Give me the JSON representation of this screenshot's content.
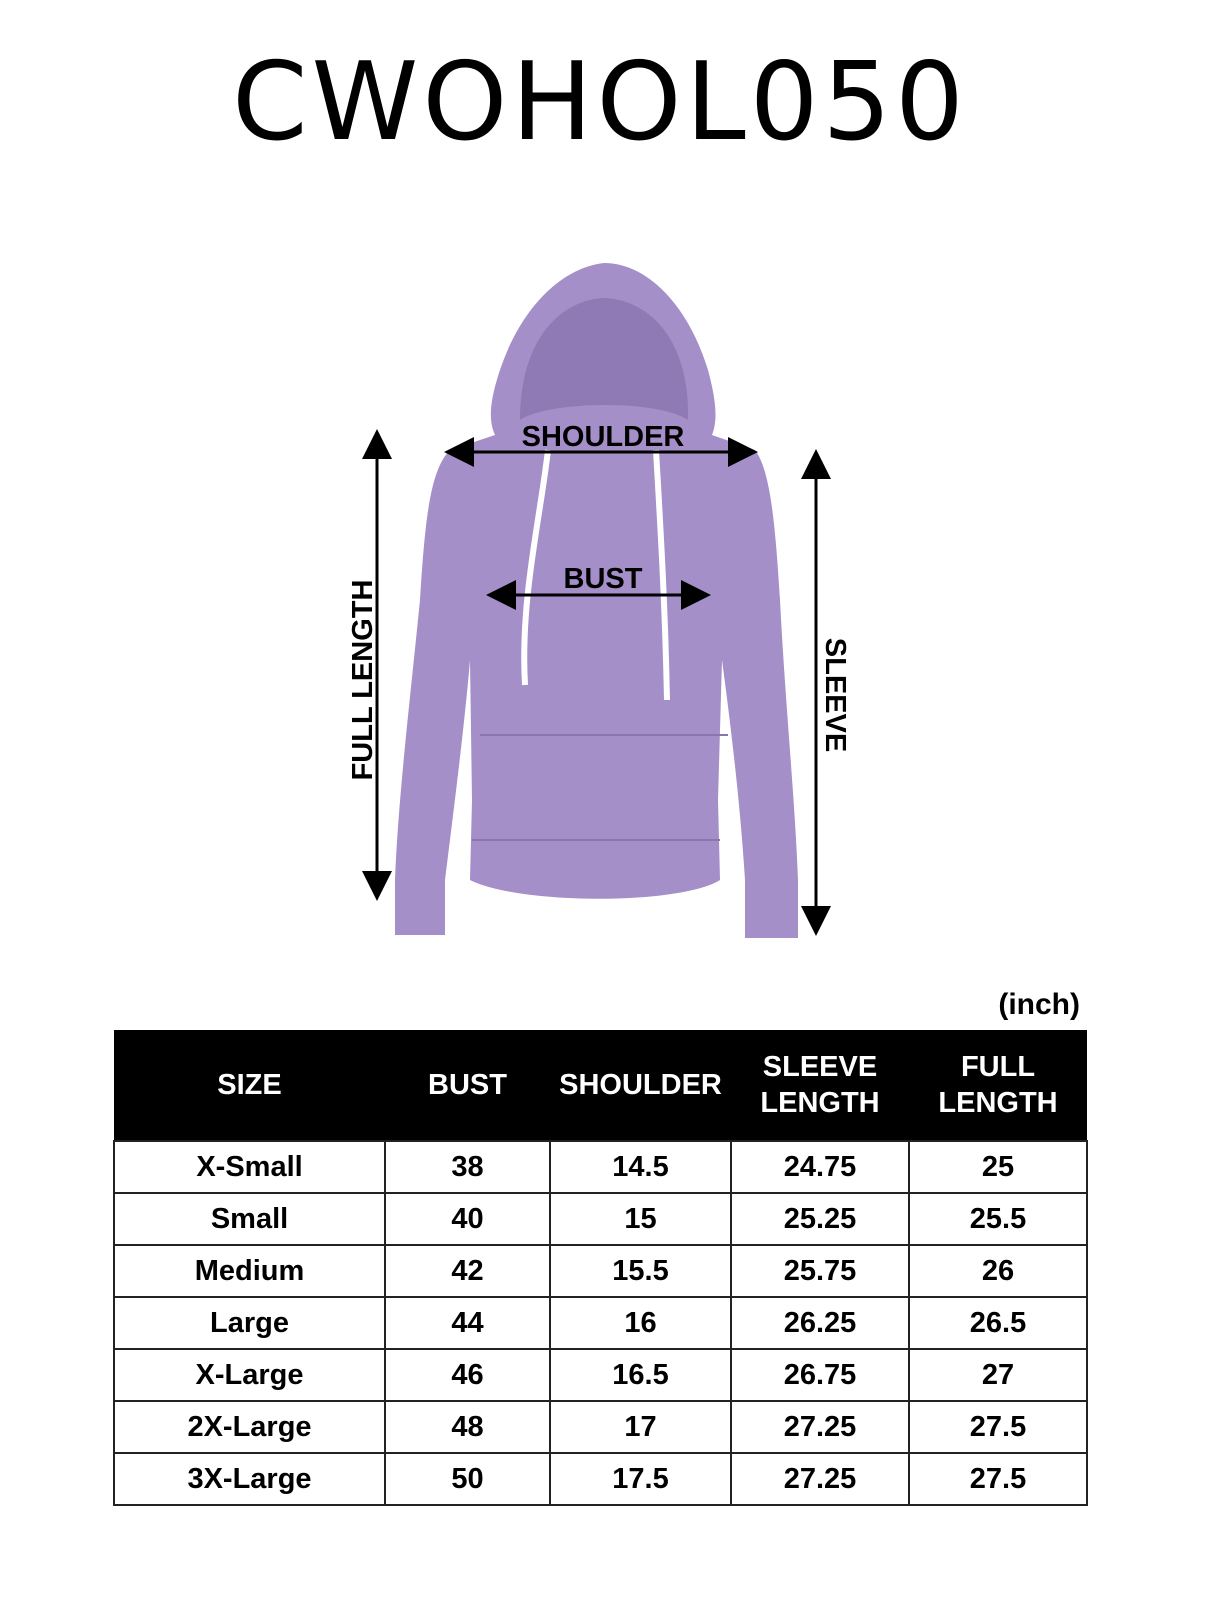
{
  "title": "CWOHOL050",
  "diagram": {
    "garment_color": "#a48fc9",
    "drawstring_color": "#ffffff",
    "labels": {
      "shoulder": "SHOULDER",
      "bust": "BUST",
      "full_length": "FULL LENGTH",
      "sleeve": "SLEEVE"
    }
  },
  "table": {
    "unit": "(inch)",
    "headers": [
      "SIZE",
      "BUST",
      "SHOULDER",
      [
        "SLEEVE",
        "LENGTH"
      ],
      [
        "FULL",
        "LENGTH"
      ]
    ],
    "rows": [
      [
        "X-Small",
        "38",
        "14.5",
        "24.75",
        "25"
      ],
      [
        "Small",
        "40",
        "15",
        "25.25",
        "25.5"
      ],
      [
        "Medium",
        "42",
        "15.5",
        "25.75",
        "26"
      ],
      [
        "Large",
        "44",
        "16",
        "26.25",
        "26.5"
      ],
      [
        "X-Large",
        "46",
        "16.5",
        "26.75",
        "27"
      ],
      [
        "2X-Large",
        "48",
        "17",
        "27.25",
        "27.5"
      ],
      [
        "3X-Large",
        "50",
        "17.5",
        "27.25",
        "27.5"
      ]
    ]
  }
}
